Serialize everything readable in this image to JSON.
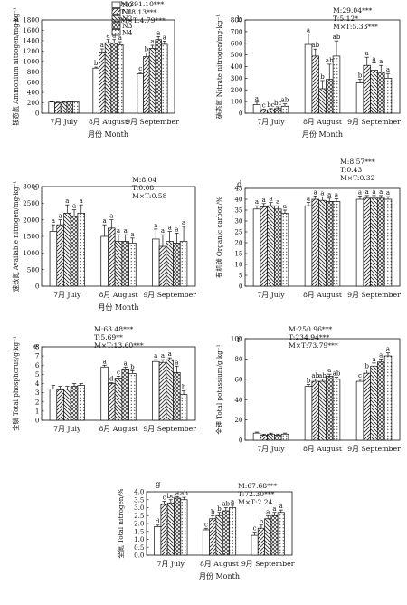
{
  "legend": {
    "entries": [
      "N0",
      "N1",
      "N2",
      "N3",
      "N4"
    ],
    "patterns": [
      "white",
      "hatch-right",
      "hatch-left",
      "cross",
      "dots"
    ]
  },
  "chart_data": [
    {
      "id": "a",
      "type": "bar",
      "categories": [
        "7月 July",
        "8月 August",
        "9月 September"
      ],
      "xlabel": "月份 Month",
      "ylabel": "铵态氮 Ammonium nitrogen/mg·kg⁻¹",
      "ylim": [
        0,
        1800
      ],
      "ticks": [
        0,
        200,
        400,
        600,
        800,
        1000,
        1200,
        1400,
        1600,
        1800
      ],
      "stats": [
        "M:391.10***",
        "T:18.13***",
        "M×T:4.79***"
      ],
      "series": [
        {
          "name": "N0",
          "values": [
            215,
            870,
            760
          ],
          "errors": [
            10,
            20,
            25
          ],
          "letters": [
            "",
            "b",
            "c"
          ]
        },
        {
          "name": "N1",
          "values": [
            205,
            1180,
            1090
          ],
          "errors": [
            10,
            60,
            70
          ],
          "letters": [
            "",
            "a",
            "b"
          ]
        },
        {
          "name": "N2",
          "values": [
            210,
            1360,
            1250
          ],
          "errors": [
            10,
            60,
            60
          ],
          "letters": [
            "",
            "a",
            "a"
          ]
        },
        {
          "name": "N3",
          "values": [
            220,
            1350,
            1420
          ],
          "errors": [
            10,
            70,
            60
          ],
          "letters": [
            "",
            "a",
            "a"
          ]
        },
        {
          "name": "N4",
          "values": [
            220,
            1320,
            1330
          ],
          "errors": [
            10,
            60,
            60
          ],
          "letters": [
            "",
            "a",
            "a"
          ]
        }
      ]
    },
    {
      "id": "b",
      "type": "bar",
      "categories": [
        "7月 July",
        "8月 August",
        "9月 September"
      ],
      "xlabel": "月份 Month",
      "ylabel": "硝态氮 Nitrate nitrogen/mg·kg⁻¹",
      "ylim": [
        0,
        800
      ],
      "ticks": [
        0,
        100,
        200,
        300,
        400,
        500,
        600,
        700,
        800
      ],
      "stats": [
        "M:29.04***",
        "T:5.12*",
        "M×T:5.33***"
      ],
      "series": [
        {
          "name": "N0",
          "values": [
            75,
            590,
            260
          ],
          "errors": [
            20,
            90,
            30
          ],
          "letters": [
            "a",
            "a",
            "b"
          ]
        },
        {
          "name": "N1",
          "values": [
            25,
            490,
            410
          ],
          "errors": [
            10,
            60,
            70
          ],
          "letters": [
            "c",
            "ab",
            "a"
          ]
        },
        {
          "name": "N2",
          "values": [
            30,
            210,
            370
          ],
          "errors": [
            10,
            70,
            60
          ],
          "letters": [
            "bc",
            "b",
            "a"
          ]
        },
        {
          "name": "N3",
          "values": [
            40,
            290,
            350
          ],
          "errors": [
            15,
            130,
            60
          ],
          "letters": [
            "bc",
            "ab",
            "a"
          ]
        },
        {
          "name": "N4",
          "values": [
            60,
            490,
            300
          ],
          "errors": [
            20,
            130,
            40
          ],
          "letters": [
            "ab",
            "ab",
            "a"
          ]
        }
      ]
    },
    {
      "id": "c",
      "type": "bar",
      "categories": [
        "7月 July",
        "8月 August",
        "9月 September"
      ],
      "xlabel": "月份 Month",
      "ylabel": "速效氮 Available nitrogen/mg·kg⁻¹",
      "ylim": [
        0,
        3000
      ],
      "ticks": [
        0,
        500,
        1000,
        1500,
        2000,
        2500,
        3000
      ],
      "stats": [
        "M:8.04",
        "T:0.08",
        "M×T:0.58"
      ],
      "series": [
        {
          "name": "N0",
          "values": [
            1650,
            1500,
            1420
          ],
          "errors": [
            200,
            350,
            300
          ],
          "letters": [
            "a",
            "a",
            "a"
          ]
        },
        {
          "name": "N1",
          "values": [
            1850,
            1750,
            1200
          ],
          "errors": [
            150,
            250,
            350
          ],
          "letters": [
            "a",
            "a",
            "a"
          ]
        },
        {
          "name": "N2",
          "values": [
            2200,
            1350,
            1350
          ],
          "errors": [
            250,
            200,
            300
          ],
          "letters": [
            "a",
            "a",
            "a"
          ]
        },
        {
          "name": "N3",
          "values": [
            2100,
            1350,
            1300
          ],
          "errors": [
            200,
            200,
            300
          ],
          "letters": [
            "a",
            "a",
            "a"
          ]
        },
        {
          "name": "N4",
          "values": [
            2200,
            1300,
            1350
          ],
          "errors": [
            250,
            150,
            450
          ],
          "letters": [
            "a",
            "a",
            "a"
          ]
        }
      ]
    },
    {
      "id": "d",
      "type": "bar",
      "categories": [
        "7月 July",
        "8月 August",
        "9月 September"
      ],
      "xlabel": "",
      "ylabel": "有机碳 Organic carbon/%",
      "ylim": [
        0,
        45
      ],
      "ticks": [
        0,
        5,
        10,
        15,
        20,
        25,
        30,
        35,
        40,
        45
      ],
      "stats": [
        "M:8.57***",
        "T:0.43",
        "M×T:0.32"
      ],
      "series": [
        {
          "name": "N0",
          "values": [
            35.5,
            37,
            40
          ],
          "errors": [
            1.5,
            1.5,
            1.5
          ],
          "letters": [
            "a",
            "a",
            "a"
          ]
        },
        {
          "name": "N1",
          "values": [
            36.5,
            40,
            40.5
          ],
          "errors": [
            1.5,
            1.5,
            1.2
          ],
          "letters": [
            "a",
            "a",
            "a"
          ]
        },
        {
          "name": "N2",
          "values": [
            37,
            39.5,
            40.5
          ],
          "errors": [
            1.5,
            1.5,
            1.2
          ],
          "letters": [
            "a",
            "a",
            "a"
          ]
        },
        {
          "name": "N3",
          "values": [
            35.5,
            39,
            40.5
          ],
          "errors": [
            1.5,
            1.5,
            1.2
          ],
          "letters": [
            "a",
            "a",
            "a"
          ]
        },
        {
          "name": "N4",
          "values": [
            33.5,
            39,
            40
          ],
          "errors": [
            1.5,
            1.2,
            1.2
          ],
          "letters": [
            "a",
            "a",
            "a"
          ]
        }
      ]
    },
    {
      "id": "e",
      "type": "bar",
      "categories": [
        "7月 July",
        "8月 August",
        "9月 September"
      ],
      "xlabel": "",
      "ylabel": "全磷 Total phosphorus/g·kg⁻¹",
      "ylim": [
        0,
        8
      ],
      "ticks": [
        0,
        1,
        2,
        3,
        4,
        5,
        6,
        7,
        8
      ],
      "stats": [
        "M:63.48***",
        "T:5.69**",
        "M×T:13.60***"
      ],
      "series": [
        {
          "name": "N0",
          "values": [
            3.4,
            5.8,
            6.4
          ],
          "errors": [
            0.4,
            0.2,
            0.2
          ],
          "letters": [
            "",
            "a",
            "a"
          ]
        },
        {
          "name": "N1",
          "values": [
            3.3,
            4.0,
            6.3
          ],
          "errors": [
            0.4,
            0.1,
            0.3
          ],
          "letters": [
            "",
            "d",
            "a"
          ]
        },
        {
          "name": "N2",
          "values": [
            3.4,
            4.6,
            6.6
          ],
          "errors": [
            0.3,
            0.2,
            0.2
          ],
          "letters": [
            "",
            "c",
            "a"
          ]
        },
        {
          "name": "N3",
          "values": [
            3.7,
            5.6,
            5.2
          ],
          "errors": [
            0.3,
            0.2,
            0.7
          ],
          "letters": [
            "",
            "a",
            "a"
          ]
        },
        {
          "name": "N4",
          "values": [
            3.8,
            5.1,
            2.8
          ],
          "errors": [
            0.2,
            0.3,
            0.4
          ],
          "letters": [
            "",
            "b",
            "b"
          ]
        }
      ]
    },
    {
      "id": "f",
      "type": "bar",
      "categories": [
        "7月 July",
        "8月 August",
        "9月 September"
      ],
      "xlabel": "",
      "ylabel": "全钾 Total potassium/g·kg⁻¹",
      "ylim": [
        0,
        100
      ],
      "ticks": [
        0,
        20,
        40,
        60,
        80,
        100
      ],
      "stats": [
        "M:250.96***",
        "T:234.94***",
        "M×T:73.79***"
      ],
      "series": [
        {
          "name": "N0",
          "values": [
            7,
            53,
            58
          ],
          "errors": [
            1,
            2,
            2
          ],
          "letters": [
            "",
            "b",
            "c"
          ]
        },
        {
          "name": "N1",
          "values": [
            5,
            58,
            66
          ],
          "errors": [
            1,
            2,
            3
          ],
          "letters": [
            "",
            "ab",
            "b"
          ]
        },
        {
          "name": "N2",
          "values": [
            6,
            58,
            73
          ],
          "errors": [
            1,
            2,
            3
          ],
          "letters": [
            "",
            "ab",
            "a"
          ]
        },
        {
          "name": "N3",
          "values": [
            5,
            63,
            77
          ],
          "errors": [
            1,
            2,
            3
          ],
          "letters": [
            "",
            "a",
            "a"
          ]
        },
        {
          "name": "N4",
          "values": [
            6,
            60,
            83
          ],
          "errors": [
            1,
            2,
            3
          ],
          "letters": [
            "",
            "ab",
            "a"
          ]
        }
      ]
    },
    {
      "id": "g",
      "type": "bar",
      "categories": [
        "7月 July",
        "8月 August",
        "9月 September"
      ],
      "xlabel": "月份 Month",
      "ylabel": "全氮 Total nitrogen/%",
      "ylim": [
        0,
        4.0
      ],
      "ticks": [
        0,
        0.5,
        1.0,
        1.5,
        2.0,
        2.5,
        3.0,
        3.5,
        4.0
      ],
      "stats": [
        "M:67.68***",
        "T:72.30***",
        "M×T:2.24"
      ],
      "series": [
        {
          "name": "N0",
          "values": [
            1.8,
            1.6,
            1.25
          ],
          "errors": [
            0.1,
            0.1,
            0.2
          ],
          "letters": [
            "d",
            "c",
            "c"
          ]
        },
        {
          "name": "N1",
          "values": [
            3.2,
            2.3,
            1.7
          ],
          "errors": [
            0.2,
            0.2,
            0.2
          ],
          "letters": [
            "c",
            "b",
            "b"
          ]
        },
        {
          "name": "N2",
          "values": [
            3.3,
            2.5,
            2.3
          ],
          "errors": [
            0.2,
            0.2,
            0.2
          ],
          "letters": [
            "bc",
            "b",
            "a"
          ]
        },
        {
          "name": "N3",
          "values": [
            3.6,
            2.8,
            2.5
          ],
          "errors": [
            0.1,
            0.2,
            0.2
          ],
          "letters": [
            "a",
            "ab",
            "a"
          ]
        },
        {
          "name": "N4",
          "values": [
            3.5,
            3.0,
            2.7
          ],
          "errors": [
            0.15,
            0.15,
            0.15
          ],
          "letters": [
            "ab",
            "a",
            "a"
          ]
        }
      ]
    }
  ]
}
